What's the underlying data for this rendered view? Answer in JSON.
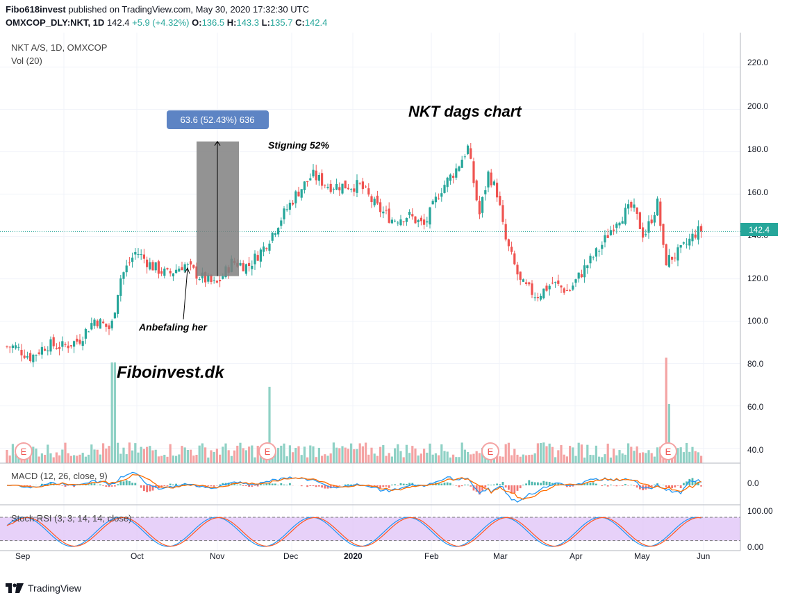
{
  "header": {
    "line1_user": "Fibo618invest",
    "line1_rest": " published on TradingView.com, May 30, 2020 17:32:30 UTC",
    "symbol": "OMXCOP_DLY:NKT, 1D",
    "last": "142.4",
    "change": "+5.9 (+4.32%)",
    "o_label": "O:",
    "o": "136.5",
    "h_label": "H:",
    "h": "143.3",
    "l_label": "L:",
    "l": "135.7",
    "c_label": "C:",
    "c": "142.4"
  },
  "pane_labels": {
    "main": "NKT A/S, 1D, OMXCOP",
    "vol": "Vol (20)",
    "macd": "MACD (12, 26, close, 9)",
    "stoch": "Stoch RSI (3, 3, 14, 14, close)"
  },
  "annotations": {
    "title": "NKT dags chart",
    "brand": "Fiboinvest.dk",
    "rise": "Stigning 52%",
    "reco": "Anbefaling her",
    "measure": "63.6 (52.43%) 636",
    "earnings": "E"
  },
  "footer": {
    "logo_text": "TradingView"
  },
  "colors": {
    "up": "#26a69a",
    "down": "#ef5350",
    "vol_up": "#8fd1c5",
    "vol_down": "#f4a3a3",
    "macd_line": "#2196f3",
    "signal_line": "#ff6d00",
    "stoch_k": "#2196f3",
    "stoch_d": "#ff5722",
    "stoch_band": "#e1c5f7",
    "price_line": "#26a69a",
    "measure_box": "#808080",
    "measure_label": "#5d84c4"
  },
  "chart_data": {
    "type": "candlestick",
    "title": "NKT dags chart",
    "symbol": "NKT A/S, 1D, OMXCOP",
    "y_axis_ticks": [
      "40.0",
      "60.0",
      "80.0",
      "100.0",
      "120.0",
      "140.0",
      "160.0",
      "180.0",
      "200.0",
      "220.0"
    ],
    "macd_axis_ticks": [
      "0.0"
    ],
    "stoch_axis_ticks": [
      "100.00",
      "0.00"
    ],
    "x_axis_labels": [
      "Sep",
      "Oct",
      "Nov",
      "Dec",
      "2020",
      "Feb",
      "Mar",
      "Apr",
      "May",
      "Jun"
    ],
    "last_price": 142.4,
    "ylim": [
      33,
      233
    ],
    "earnings_markers": [
      "Aug",
      "Nov",
      "Feb",
      "May"
    ],
    "price_path_approx": [
      {
        "t": "2019-08-05",
        "close": 88
      },
      {
        "t": "2019-08-12",
        "close": 83
      },
      {
        "t": "2019-08-19",
        "close": 89
      },
      {
        "t": "2019-08-26",
        "close": 88
      },
      {
        "t": "2019-09-02",
        "close": 91
      },
      {
        "t": "2019-09-09",
        "close": 101
      },
      {
        "t": "2019-09-16",
        "close": 96
      },
      {
        "t": "2019-09-20",
        "close": 120
      },
      {
        "t": "2019-09-27",
        "close": 133
      },
      {
        "t": "2019-10-04",
        "close": 126
      },
      {
        "t": "2019-10-11",
        "close": 122
      },
      {
        "t": "2019-10-18",
        "close": 127
      },
      {
        "t": "2019-10-25",
        "close": 121
      },
      {
        "t": "2019-11-01",
        "close": 117
      },
      {
        "t": "2019-11-08",
        "close": 128
      },
      {
        "t": "2019-11-15",
        "close": 126
      },
      {
        "t": "2019-11-22",
        "close": 135
      },
      {
        "t": "2019-11-29",
        "close": 148
      },
      {
        "t": "2019-12-06",
        "close": 160
      },
      {
        "t": "2019-12-13",
        "close": 169
      },
      {
        "t": "2019-12-20",
        "close": 164
      },
      {
        "t": "2020-01-03",
        "close": 164
      },
      {
        "t": "2020-01-10",
        "close": 154
      },
      {
        "t": "2020-01-17",
        "close": 148
      },
      {
        "t": "2020-01-24",
        "close": 150
      },
      {
        "t": "2020-01-31",
        "close": 145
      },
      {
        "t": "2020-02-07",
        "close": 162
      },
      {
        "t": "2020-02-14",
        "close": 172
      },
      {
        "t": "2020-02-19",
        "close": 182
      },
      {
        "t": "2020-02-24",
        "close": 150
      },
      {
        "t": "2020-02-28",
        "close": 170
      },
      {
        "t": "2020-03-03",
        "close": 160
      },
      {
        "t": "2020-03-06",
        "close": 140
      },
      {
        "t": "2020-03-13",
        "close": 118
      },
      {
        "t": "2020-03-20",
        "close": 112
      },
      {
        "t": "2020-03-27",
        "close": 118
      },
      {
        "t": "2020-04-03",
        "close": 114
      },
      {
        "t": "2020-04-10",
        "close": 125
      },
      {
        "t": "2020-04-17",
        "close": 135
      },
      {
        "t": "2020-04-24",
        "close": 148
      },
      {
        "t": "2020-05-01",
        "close": 154
      },
      {
        "t": "2020-05-06",
        "close": 140
      },
      {
        "t": "2020-05-12",
        "close": 156
      },
      {
        "t": "2020-05-15",
        "close": 128
      },
      {
        "t": "2020-05-22",
        "close": 133
      },
      {
        "t": "2020-05-29",
        "close": 142.4
      }
    ],
    "measurement": {
      "from": 121.3,
      "to": 184.9,
      "change": "63.6 (52.43%) 636"
    }
  }
}
